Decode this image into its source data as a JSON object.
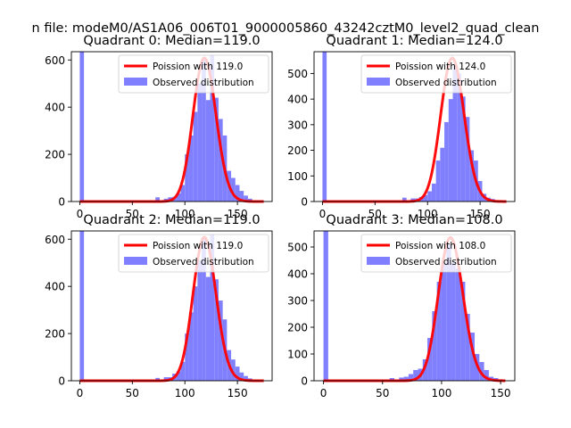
{
  "figure_title": "n file: modeM0/AS1A06_006T01_9000005860_43242cztM0_level2_quad_clean",
  "colors": {
    "bar": "#8080ff",
    "curve": "#ff0000",
    "axis": "#000000",
    "legend_frame": "#cccccc"
  },
  "chart_data": [
    {
      "type": "bar",
      "title": "Quadrant 0: Median=119.0",
      "median": 119.0,
      "xlim": [
        -8,
        183
      ],
      "ylim": [
        0,
        635
      ],
      "xticks": [
        0,
        50,
        100,
        150
      ],
      "yticks": [
        0,
        200,
        400,
        600
      ],
      "xlabel": "",
      "ylabel": "",
      "legend_position": "upper right",
      "bin_width": 4,
      "series": [
        {
          "name": "Poission with 119.0",
          "kind": "line",
          "mean": 119.0,
          "scale": 608
        },
        {
          "name": "Observed distribution",
          "kind": "histogram",
          "bins": [
            [
              0,
              635
            ],
            [
              72,
              18
            ],
            [
              80,
              12
            ],
            [
              84,
              18
            ],
            [
              88,
              20
            ],
            [
              92,
              35
            ],
            [
              96,
              70
            ],
            [
              100,
              200
            ],
            [
              104,
              280
            ],
            [
              108,
              380
            ],
            [
              112,
              500
            ],
            [
              116,
              600
            ],
            [
              120,
              430
            ],
            [
              124,
              620
            ],
            [
              128,
              440
            ],
            [
              132,
              350
            ],
            [
              136,
              280
            ],
            [
              140,
              130
            ],
            [
              144,
              100
            ],
            [
              148,
              70
            ],
            [
              152,
              45
            ],
            [
              156,
              25
            ],
            [
              160,
              12
            ]
          ]
        }
      ]
    },
    {
      "type": "bar",
      "title": "Quadrant 1: Median=124.0",
      "median": 124.0,
      "xlim": [
        -8,
        183
      ],
      "ylim": [
        0,
        585
      ],
      "xticks": [
        0,
        50,
        100,
        150
      ],
      "yticks": [
        0,
        100,
        200,
        300,
        400,
        500
      ],
      "xlabel": "",
      "ylabel": "",
      "legend_position": "upper right",
      "bin_width": 4,
      "series": [
        {
          "name": "Poission with 124.0",
          "kind": "line",
          "mean": 124.0,
          "scale": 560
        },
        {
          "name": "Observed distribution",
          "kind": "histogram",
          "bins": [
            [
              0,
              585
            ],
            [
              76,
              15
            ],
            [
              84,
              12
            ],
            [
              88,
              12
            ],
            [
              92,
              18
            ],
            [
              96,
              25
            ],
            [
              100,
              40
            ],
            [
              104,
              70
            ],
            [
              108,
              160
            ],
            [
              112,
              210
            ],
            [
              116,
              310
            ],
            [
              120,
              400
            ],
            [
              124,
              530
            ],
            [
              128,
              500
            ],
            [
              132,
              410
            ],
            [
              136,
              330
            ],
            [
              140,
              200
            ],
            [
              144,
              160
            ],
            [
              148,
              80
            ],
            [
              152,
              30
            ],
            [
              156,
              15
            ],
            [
              160,
              10
            ]
          ]
        }
      ]
    },
    {
      "type": "bar",
      "title": "Quadrant 2: Median=119.0",
      "median": 119.0,
      "xlim": [
        -8,
        183
      ],
      "ylim": [
        0,
        635
      ],
      "xticks": [
        0,
        50,
        100,
        150
      ],
      "yticks": [
        0,
        200,
        400,
        600
      ],
      "xlabel": "",
      "ylabel": "",
      "legend_position": "upper right",
      "bin_width": 4,
      "series": [
        {
          "name": "Poission with 119.0",
          "kind": "line",
          "mean": 119.0,
          "scale": 608
        },
        {
          "name": "Observed distribution",
          "kind": "histogram",
          "bins": [
            [
              0,
              635
            ],
            [
              72,
              12
            ],
            [
              80,
              15
            ],
            [
              84,
              15
            ],
            [
              88,
              30
            ],
            [
              92,
              40
            ],
            [
              96,
              80
            ],
            [
              100,
              200
            ],
            [
              104,
              290
            ],
            [
              108,
              400
            ],
            [
              112,
              510
            ],
            [
              116,
              600
            ],
            [
              120,
              440
            ],
            [
              124,
              620
            ],
            [
              128,
              430
            ],
            [
              132,
              340
            ],
            [
              136,
              260
            ],
            [
              140,
              130
            ],
            [
              144,
              90
            ],
            [
              148,
              60
            ],
            [
              152,
              35
            ],
            [
              156,
              20
            ],
            [
              160,
              10
            ]
          ]
        }
      ]
    },
    {
      "type": "bar",
      "title": "Quadrant 3: Median=108.0",
      "median": 108.0,
      "xlim": [
        -8,
        162
      ],
      "ylim": [
        0,
        560
      ],
      "xticks": [
        0,
        50,
        100,
        150
      ],
      "yticks": [
        0,
        100,
        200,
        300,
        400,
        500
      ],
      "xlabel": "",
      "ylabel": "",
      "legend_position": "upper right",
      "bin_width": 4,
      "series": [
        {
          "name": "Poission with 108.0",
          "kind": "line",
          "mean": 108.0,
          "scale": 535
        },
        {
          "name": "Observed distribution",
          "kind": "histogram",
          "bins": [
            [
              0,
              560
            ],
            [
              56,
              10
            ],
            [
              64,
              12
            ],
            [
              68,
              15
            ],
            [
              72,
              25
            ],
            [
              76,
              40
            ],
            [
              80,
              45
            ],
            [
              84,
              80
            ],
            [
              88,
              160
            ],
            [
              92,
              260
            ],
            [
              96,
              370
            ],
            [
              100,
              440
            ],
            [
              104,
              510
            ],
            [
              108,
              440
            ],
            [
              112,
              420
            ],
            [
              116,
              370
            ],
            [
              120,
              250
            ],
            [
              124,
              180
            ],
            [
              128,
              100
            ],
            [
              132,
              70
            ],
            [
              136,
              40
            ],
            [
              140,
              15
            ],
            [
              144,
              10
            ]
          ]
        }
      ]
    }
  ]
}
